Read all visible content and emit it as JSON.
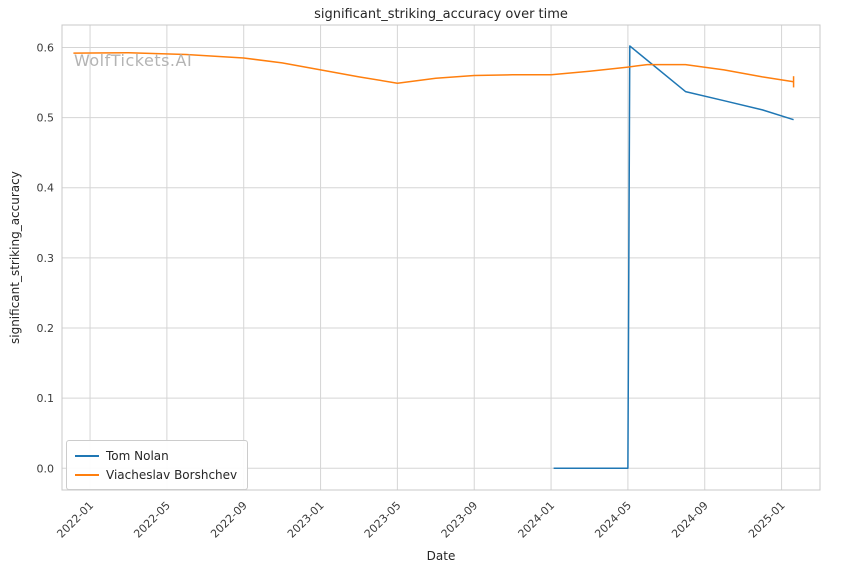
{
  "watermark": "WolfTickets.AI",
  "chart_data": {
    "type": "line",
    "title": "significant_striking_accuracy over time",
    "xlabel": "Date",
    "ylabel": "significant_striking_accuracy",
    "grid": true,
    "legend_position": "lower left",
    "ylim": [
      -0.031,
      0.632
    ],
    "yticks": [
      0.0,
      0.1,
      0.2,
      0.3,
      0.4,
      0.5,
      0.6
    ],
    "xticks": [
      "2022-01",
      "2022-05",
      "2022-09",
      "2023-01",
      "2023-05",
      "2023-09",
      "2024-01",
      "2024-05",
      "2024-09",
      "2025-01"
    ],
    "x_range_months_since_2022_01": [
      -1.46,
      38.0
    ],
    "colors": {
      "grid": "#d5d5d5",
      "spine": "#c8c8c8",
      "tick_text": "#3b3b3b"
    },
    "series": [
      {
        "name": "Tom Nolan",
        "color": "#1f77b4",
        "points": [
          [
            "2024-01-05",
            0.0
          ],
          [
            "2024-05-01",
            0.0
          ],
          [
            "2024-05-04",
            0.602
          ],
          [
            "2024-08-01",
            0.537
          ],
          [
            "2024-10-01",
            0.524
          ],
          [
            "2024-12-01",
            0.511
          ],
          [
            "2025-01-20",
            0.497
          ]
        ]
      },
      {
        "name": "Viacheslav Borshchev",
        "color": "#ff7f0e",
        "yerr_last": 0.008,
        "points": [
          [
            "2021-12-05",
            0.592
          ],
          [
            "2022-03-01",
            0.5925
          ],
          [
            "2022-06-01",
            0.59
          ],
          [
            "2022-09-01",
            0.585
          ],
          [
            "2022-11-01",
            0.578
          ],
          [
            "2023-01-01",
            0.568
          ],
          [
            "2023-03-01",
            0.558
          ],
          [
            "2023-05-01",
            0.549
          ],
          [
            "2023-07-01",
            0.556
          ],
          [
            "2023-09-01",
            0.56
          ],
          [
            "2023-11-01",
            0.561
          ],
          [
            "2024-01-01",
            0.561
          ],
          [
            "2024-03-01",
            0.566
          ],
          [
            "2024-05-01",
            0.572
          ],
          [
            "2024-06-01",
            0.5755
          ],
          [
            "2024-08-01",
            0.5755
          ],
          [
            "2024-10-01",
            0.568
          ],
          [
            "2024-12-01",
            0.558
          ],
          [
            "2025-01-20",
            0.551
          ]
        ]
      }
    ]
  }
}
